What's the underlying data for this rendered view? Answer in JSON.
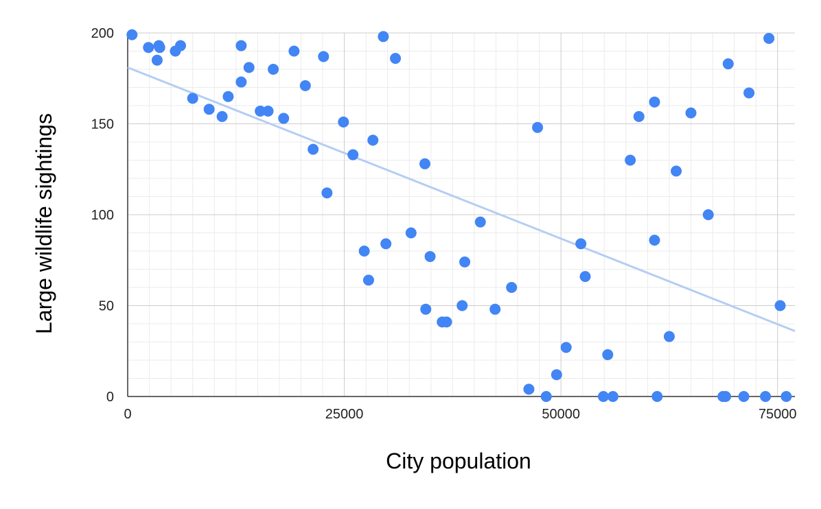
{
  "chart_data": {
    "type": "scatter",
    "xlabel": "City population",
    "ylabel": "Large wildlife sightings",
    "xlim": [
      0,
      77000
    ],
    "ylim": [
      0,
      200
    ],
    "x_ticks": [
      0,
      25000,
      50000,
      75000
    ],
    "y_ticks": [
      0,
      50,
      100,
      150,
      200
    ],
    "x_tick_labels": [
      "0",
      "25000",
      "50000",
      "75000"
    ],
    "y_tick_labels": [
      "0",
      "50",
      "100",
      "150",
      "200"
    ],
    "x_minor_step": 2500,
    "y_minor_step": 10,
    "grid": true,
    "legend": "none",
    "colors": {
      "points": "#4285f4",
      "trendline": "#b5cdf4",
      "major_grid": "#cccccc",
      "minor_grid": "#ebebeb",
      "axis": "#333333"
    },
    "trendline": {
      "type": "linear",
      "x": [
        0,
        77000
      ],
      "y": [
        181,
        36
      ]
    },
    "series": [
      {
        "x": [
          500,
          2400,
          3400,
          3600,
          3700,
          5500,
          6100,
          7500,
          9400,
          10900,
          11600,
          13100,
          13100,
          14000,
          15300,
          16200,
          16800,
          18000,
          19200,
          20500,
          21400,
          22600,
          23000,
          24900,
          26000,
          27300,
          27800,
          28300,
          29500,
          29800,
          30900,
          32700,
          34300,
          34400,
          34900,
          36300,
          36800,
          38600,
          38900,
          40700,
          42400,
          44300,
          46300,
          47300,
          48300,
          49500,
          50600,
          52300,
          52800,
          54900,
          55400,
          56000,
          58000,
          59000,
          60800,
          60800,
          61100,
          62500,
          63300,
          65000,
          67000,
          68700,
          69000,
          69300,
          71100,
          71700,
          73600,
          74000,
          75300,
          76000
        ],
        "y": [
          199,
          192,
          185,
          193,
          192,
          190,
          193,
          164,
          158,
          154,
          165,
          193,
          173,
          181,
          157,
          157,
          180,
          153,
          190,
          171,
          136,
          187,
          112,
          151,
          133,
          80,
          64,
          141,
          198,
          84,
          186,
          90,
          128,
          48,
          77,
          41,
          41,
          50,
          74,
          96,
          48,
          60,
          4,
          148,
          0,
          12,
          27,
          84,
          66,
          0,
          23,
          0,
          130,
          154,
          162,
          86,
          0,
          33,
          124,
          156,
          100,
          0,
          0,
          183,
          0,
          167,
          0,
          197,
          50,
          0
        ]
      }
    ]
  }
}
